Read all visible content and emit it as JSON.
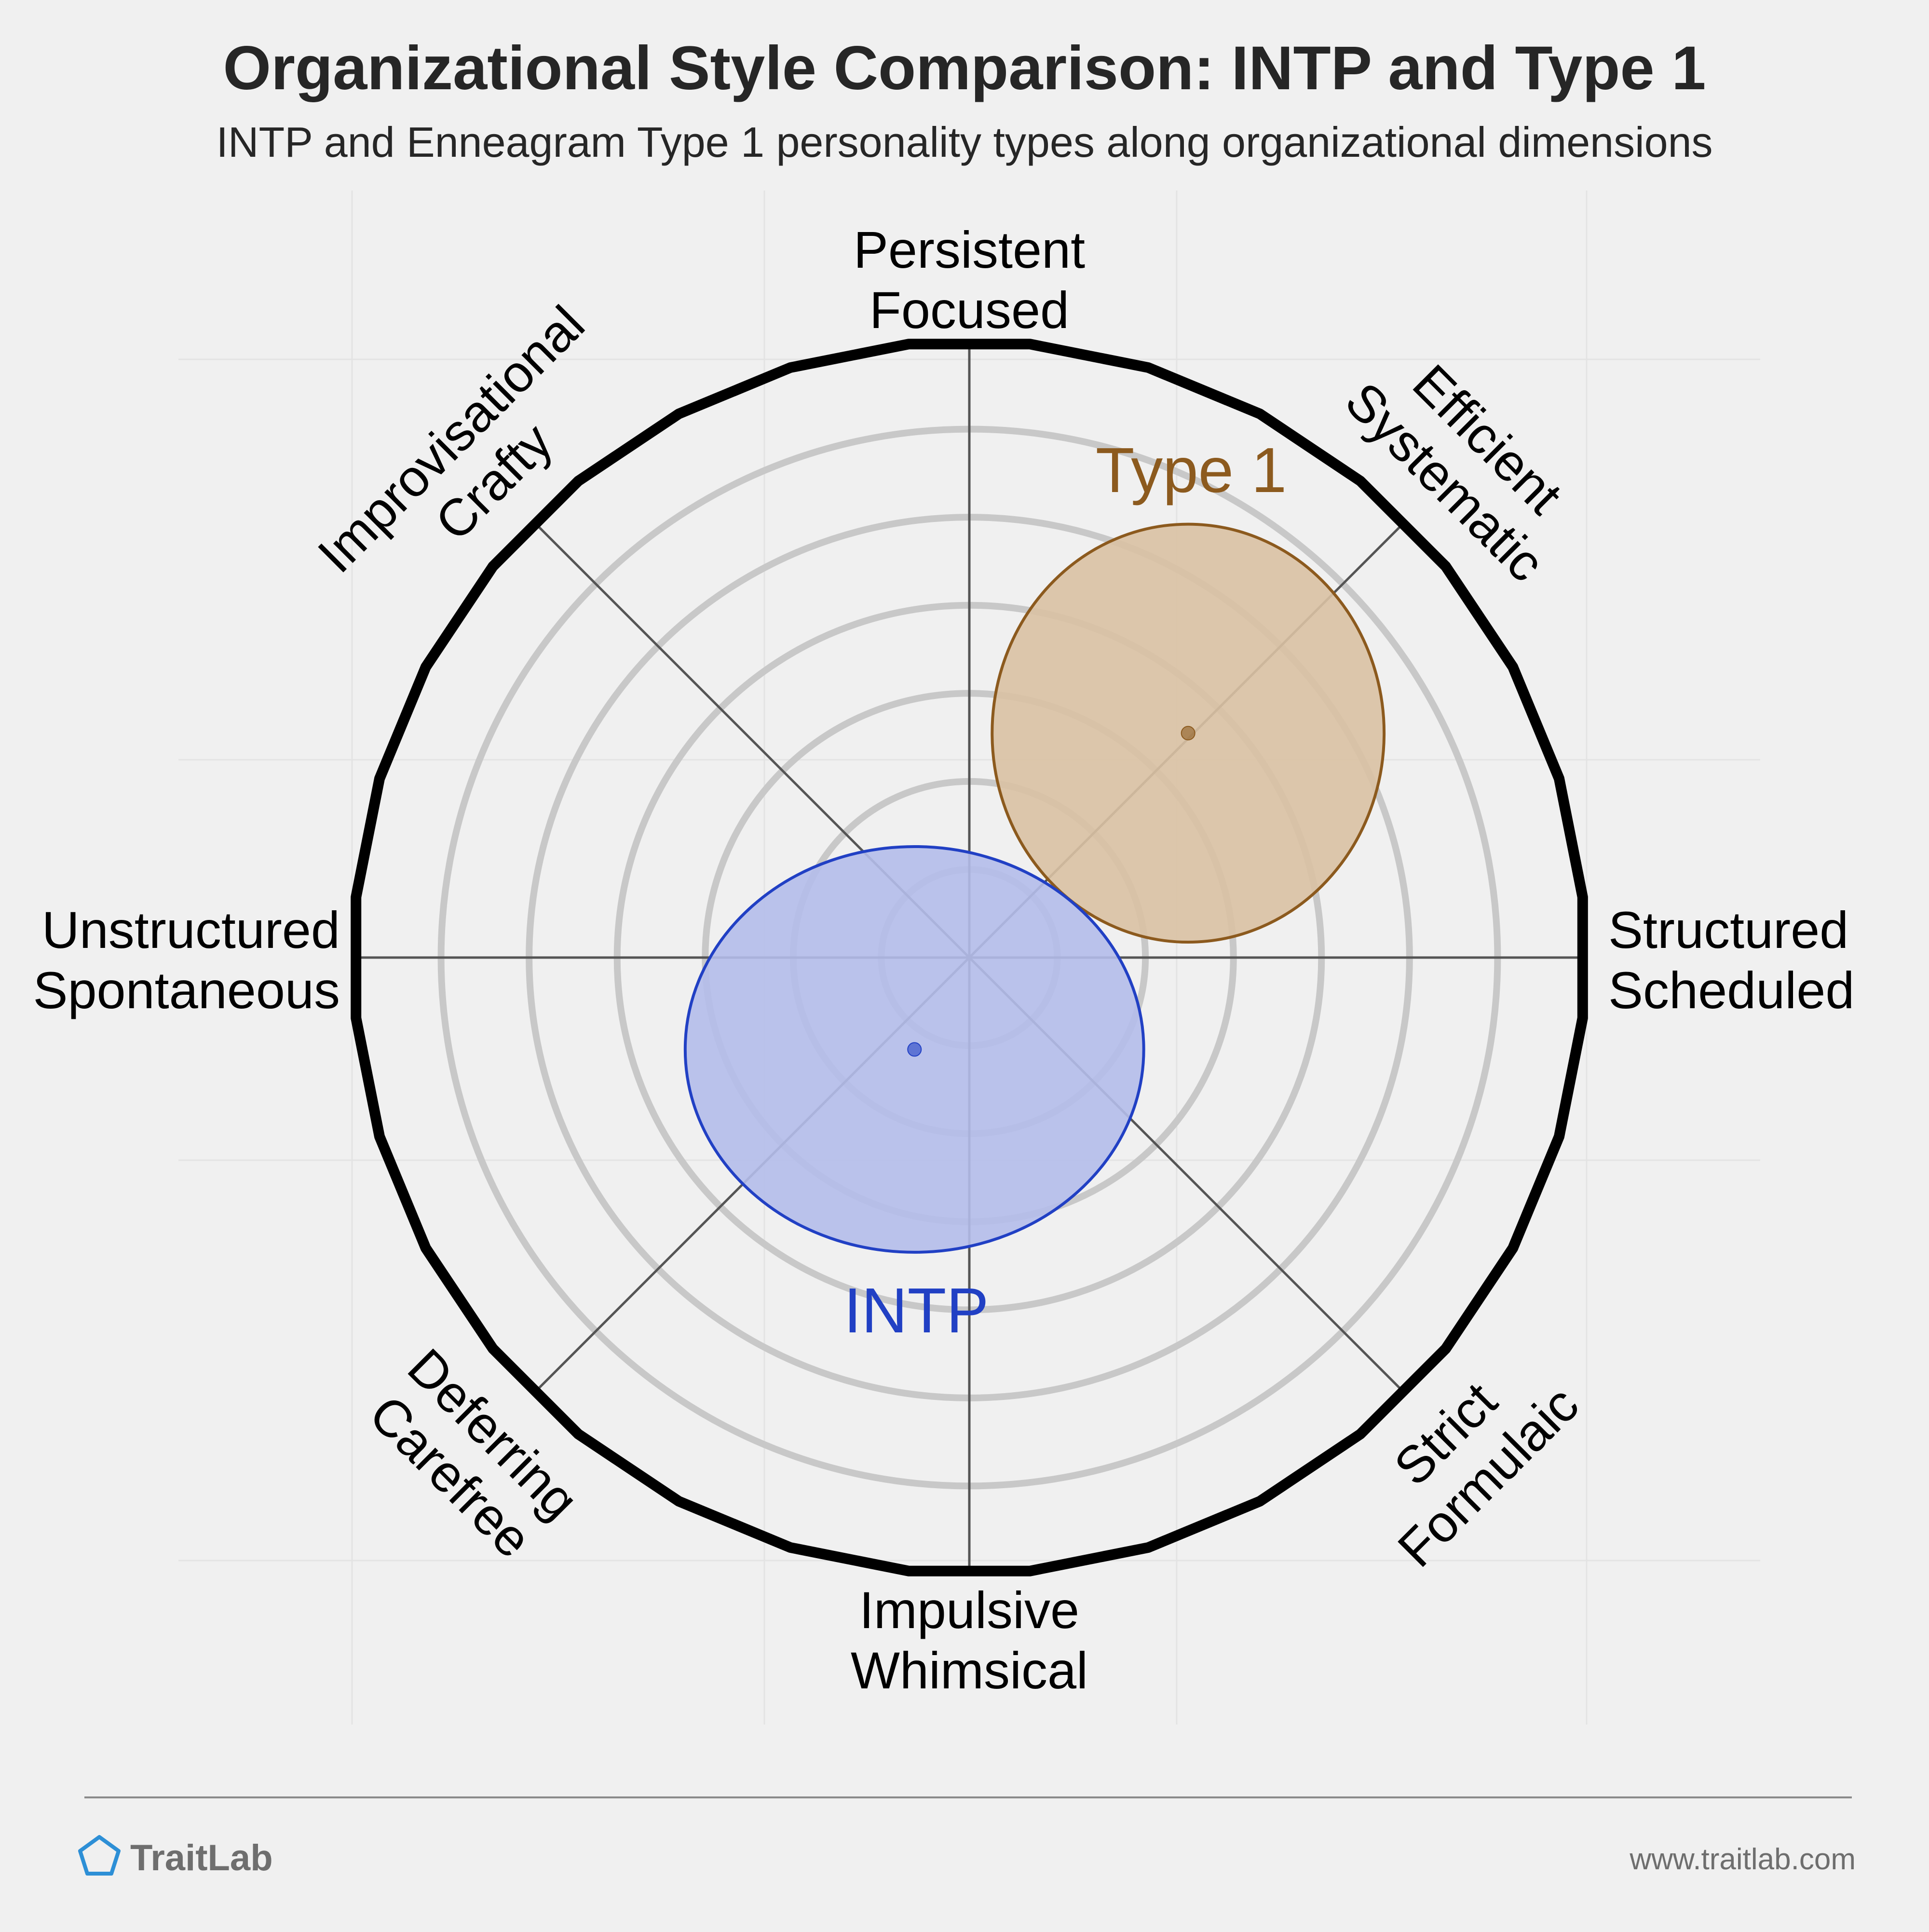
{
  "chart_data": {
    "type": "scatter",
    "title": "Organizational Style Comparison: INTP and Type 1",
    "subtitle": "INTP and Enneagram Type 1 personality types along organizational dimensions",
    "axes": [
      {
        "name": "axis-north",
        "angle": 90,
        "lines": [
          "Persistent",
          "Focused"
        ]
      },
      {
        "name": "axis-northeast",
        "angle": 45,
        "lines": [
          "Efficient",
          "Systematic"
        ]
      },
      {
        "name": "axis-east",
        "angle": 0,
        "lines": [
          "Structured",
          "Scheduled"
        ]
      },
      {
        "name": "axis-southeast",
        "angle": -45,
        "lines": [
          "Strict",
          "Formulaic"
        ]
      },
      {
        "name": "axis-south",
        "angle": -90,
        "lines": [
          "Impulsive",
          "Whimsical"
        ]
      },
      {
        "name": "axis-southwest",
        "angle": -135,
        "lines": [
          "Deferring",
          "Carefree"
        ]
      },
      {
        "name": "axis-west",
        "angle": 180,
        "lines": [
          "Unstructured",
          "Spontaneous"
        ]
      },
      {
        "name": "axis-northwest",
        "angle": 135,
        "lines": [
          "Improvisational",
          "Crafty"
        ]
      }
    ],
    "rings": 6,
    "xlim": [
      -1,
      1
    ],
    "ylim": [
      -1,
      1
    ],
    "series": [
      {
        "name": "Type 1",
        "x": 0.355,
        "y": 0.364,
        "rx": 0.318,
        "ry": 0.339,
        "color": "#8c5a1e",
        "fill": "#d9c1a3"
      },
      {
        "name": "INTP",
        "x": -0.089,
        "y": -0.149,
        "rx": 0.372,
        "ry": 0.329,
        "color": "#2140c4",
        "fill": "#b4bcea"
      }
    ]
  },
  "footer": {
    "brand": "TraitLab",
    "url": "www.traitlab.com",
    "logo_icon": "pentagon-icon"
  }
}
